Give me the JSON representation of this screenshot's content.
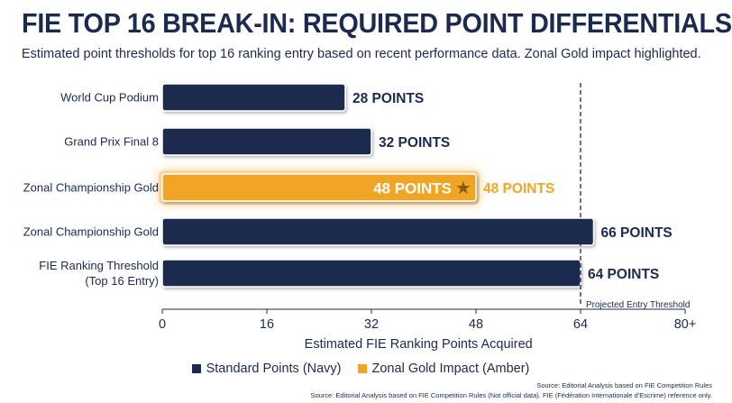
{
  "title": "FIE TOP 16 BREAK-IN: REQUIRED POINT DIFFERENTIALS",
  "subtitle": "Estimated point thresholds for top 16 ranking entry based on recent performance data. Zonal Gold impact highlighted.",
  "colors": {
    "navy": "#1b2a4e",
    "amber": "#f0a526",
    "threshold_line": "#1b2a4e"
  },
  "chart_data": {
    "type": "bar",
    "orientation": "horizontal",
    "categories": [
      "World Cup Podium",
      "Grand Prix Final 8",
      "Zonal Championship Gold",
      "Zonal Championship Gold",
      "FIE Ranking Threshold\n(Top 16 Entry)"
    ],
    "values": [
      28,
      32,
      48,
      66,
      64
    ],
    "data_labels": [
      "28 POINTS",
      "32 POINTS",
      "48 POINTS",
      "66 POINTS",
      "64 POINTS"
    ],
    "inner_label": "48 POINTS",
    "bar_series": [
      "navy",
      "navy",
      "amber",
      "navy",
      "navy"
    ],
    "series": [
      {
        "name": "Standard Points (Navy)",
        "color": "#1b2a4e"
      },
      {
        "name": "Zonal Gold Impact (Amber)",
        "color": "#f0a526"
      }
    ],
    "xlabel": "Estimated FIE Ranking Points Acquired",
    "ylabel": "",
    "xlim": [
      0,
      80
    ],
    "xticks": [
      0,
      16,
      32,
      48,
      64,
      80
    ],
    "xtick_labels": [
      "0",
      "16",
      "32",
      "48",
      "64",
      "80+"
    ],
    "reference_line": {
      "value": 64,
      "label": "Projected Entry Threshold",
      "style": "dashed"
    },
    "highlight_marker": "star",
    "grid": false,
    "legend_position": "bottom"
  },
  "sources": {
    "line1": "Source: Editorial Analysis based on FIE Competition Rules",
    "line2": "Source: Editorial Analysis based on FIE Competition Rules (Not official data). FIE (Fédération Internationale d'Escrime) reference only."
  }
}
